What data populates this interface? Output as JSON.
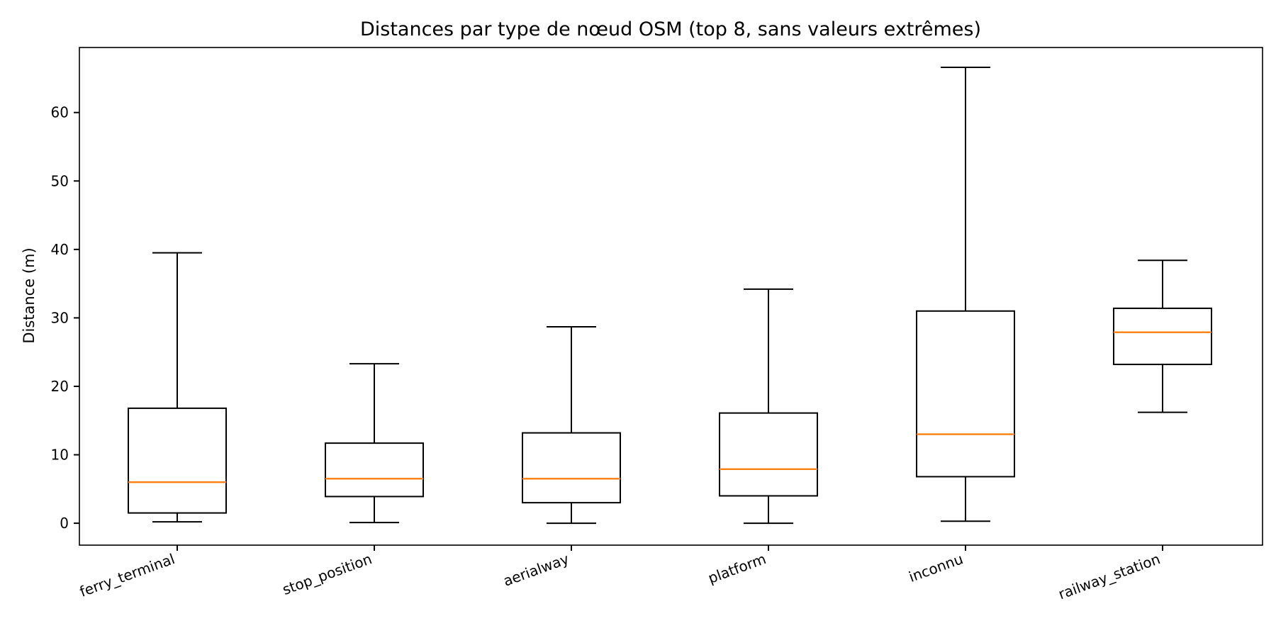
{
  "chart_data": {
    "type": "boxplot",
    "title": "Distances par type de nœud OSM (top 8, sans valeurs extrêmes)",
    "xlabel": "",
    "ylabel": "Distance (m)",
    "ylim": [
      -3.2,
      69.5
    ],
    "yticks": [
      0,
      10,
      20,
      30,
      40,
      50,
      60
    ],
    "grid": false,
    "median_color": "#ff7f0e",
    "box_color": "#000000",
    "categories": [
      "ferry_terminal",
      "stop_position",
      "aerialway",
      "platform",
      "inconnu",
      "railway_station"
    ],
    "boxes": [
      {
        "category": "ferry_terminal",
        "whisker_low": 0.2,
        "q1": 1.5,
        "median": 6.0,
        "q3": 16.8,
        "whisker_high": 39.5
      },
      {
        "category": "stop_position",
        "whisker_low": 0.1,
        "q1": 3.9,
        "median": 6.5,
        "q3": 11.7,
        "whisker_high": 23.3
      },
      {
        "category": "aerialway",
        "whisker_low": 0.0,
        "q1": 3.0,
        "median": 6.5,
        "q3": 13.2,
        "whisker_high": 28.7
      },
      {
        "category": "platform",
        "whisker_low": 0.0,
        "q1": 4.0,
        "median": 7.9,
        "q3": 16.1,
        "whisker_high": 34.2
      },
      {
        "category": "inconnu",
        "whisker_low": 0.3,
        "q1": 6.8,
        "median": 13.0,
        "q3": 31.0,
        "whisker_high": 66.6
      },
      {
        "category": "railway_station",
        "whisker_low": 16.2,
        "q1": 23.2,
        "median": 27.9,
        "q3": 31.4,
        "whisker_high": 38.4
      }
    ]
  }
}
